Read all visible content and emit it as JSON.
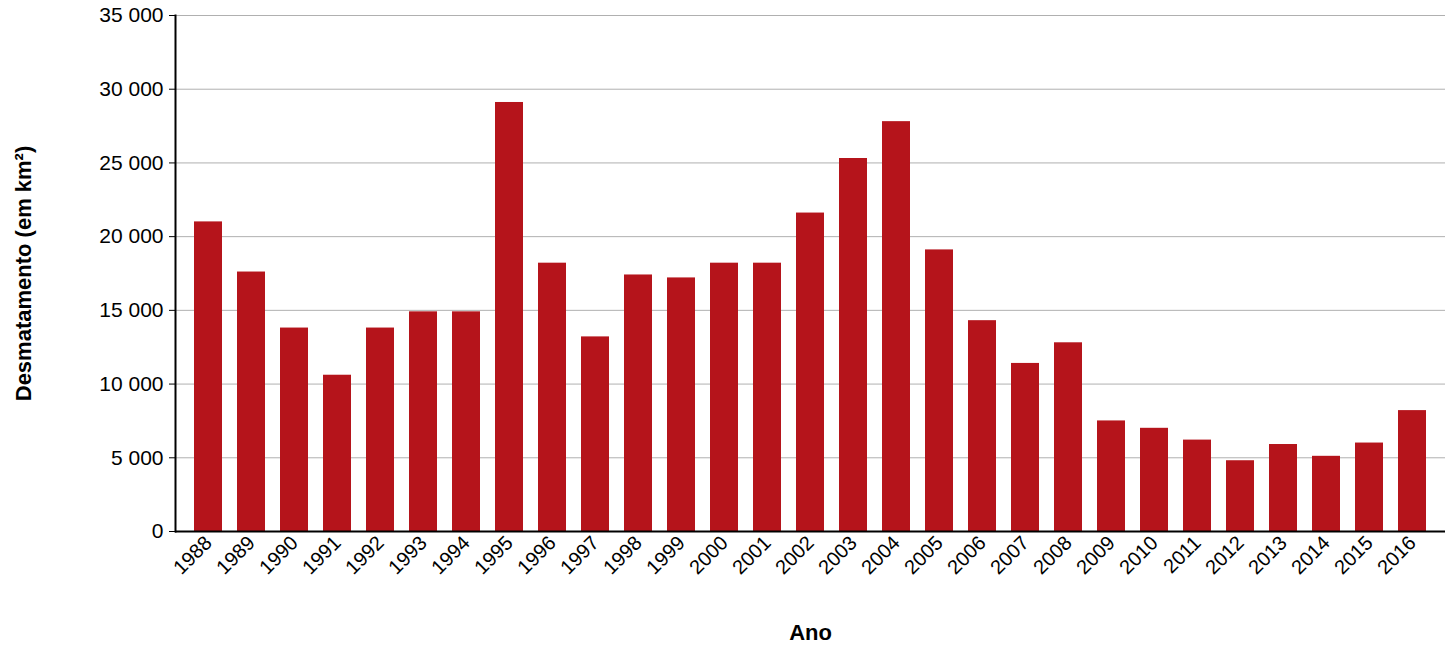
{
  "chart_data": {
    "type": "bar",
    "x_label": "Ano",
    "y_label": "Desmatamento (em km²)",
    "categories": [
      "1988",
      "1989",
      "1990",
      "1991",
      "1992",
      "1993",
      "1994",
      "1995",
      "1996",
      "1997",
      "1998",
      "1999",
      "2000",
      "2001",
      "2002",
      "2003",
      "2004",
      "2005",
      "2006",
      "2007",
      "2008",
      "2009",
      "2010",
      "2011",
      "2012",
      "2013",
      "2014",
      "2015",
      "2016"
    ],
    "values": [
      21000,
      17600,
      13800,
      10600,
      13800,
      14900,
      14900,
      29100,
      18200,
      13200,
      17400,
      17200,
      18200,
      18200,
      21600,
      25300,
      27800,
      19100,
      14300,
      11400,
      12800,
      7500,
      7000,
      6200,
      4800,
      5900,
      5100,
      6000,
      8200
    ],
    "color": "#b5141b",
    "ylim": [
      0,
      35000
    ],
    "yticks": [
      0,
      {
        "value": 5000,
        "label": "5 000"
      },
      {
        "value": 10000,
        "label": "10 000"
      },
      {
        "value": 15000,
        "label": "15 000"
      },
      {
        "value": 20000,
        "label": "20 000"
      },
      {
        "value": 25000,
        "label": "25 000"
      },
      {
        "value": 30000,
        "label": "30 000"
      },
      {
        "value": 35000,
        "label": "35 000"
      }
    ],
    "grid": true
  }
}
